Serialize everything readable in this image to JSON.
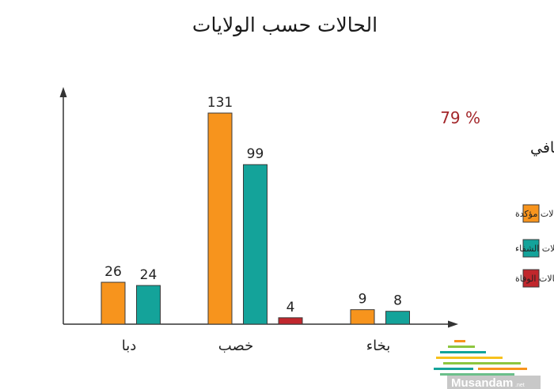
{
  "chart_data": {
    "type": "bar",
    "title": "الحالات حسب الولايات",
    "categories": [
      "دبا",
      "خصب",
      "بخاء"
    ],
    "series": [
      {
        "name": "حالات مؤكدة",
        "values": [
          26,
          131,
          9
        ],
        "color": "#F7941D"
      },
      {
        "name": "حالات الشفاء",
        "values": [
          24,
          99,
          8
        ],
        "color": "#14A39A"
      },
      {
        "name": "حالات الوفاة",
        "values": [
          null,
          4,
          null
        ],
        "color": "#C1272D"
      }
    ],
    "ylim": [
      0,
      131
    ],
    "legend_position": "right",
    "recovery_rate": {
      "value": "79 %",
      "label": "إجمالي نسبة التعافي",
      "color": "#A3262A"
    }
  },
  "logo": {
    "text": "Musandam",
    "suffix": ".net"
  }
}
